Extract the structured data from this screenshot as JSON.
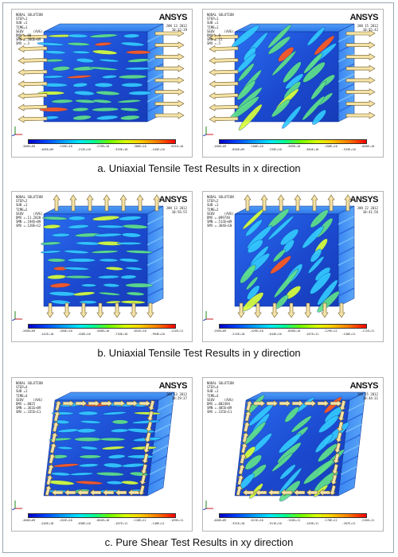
{
  "panels": [
    {
      "id": "a-left",
      "header": [
        "NODAL SOLUTION",
        "STEP=1",
        "SUB =1",
        "TIME=1",
        "SEQV     (AVG)",
        "DMX =.00",
        "SMN =.386E+09",
        "SMX =.3"
      ],
      "logo": "ANSYS",
      "date": [
        "JAN 13 2012",
        "10:22:39"
      ],
      "ticks_top": [
        ".386E+09",
        ".155E+10",
        ".270E+10",
        ".386E+10",
        ".501E+10"
      ],
      "ticks_bottom": [
        ".405E+09",
        ".212E+10",
        ".329E+10",
        ".445E+10"
      ]
    },
    {
      "id": "a-right",
      "header": [
        "NODAL SOLUTION",
        "STEP=1",
        "SUB =1",
        "TIME=1",
        "SEQV     (AVG)",
        "DMX =.0",
        "SMN =.15",
        "SMX =.5"
      ],
      "logo": "ANSYS",
      "date": [
        "JAN 15 2012",
        "10:55:42"
      ],
      "ticks_top": [
        ".100E+09",
        ".160E+10",
        ".309E+10",
        ".458E+10",
        ".608E+10"
      ],
      "ticks_bottom": [
        ".850E+09",
        ".235E+10",
        ".384E+10",
        ".533E+10"
      ]
    },
    {
      "id": "b-left",
      "header": [
        "NODAL SOLUTION",
        "STEP=2",
        "SUB =1",
        "TIME=2",
        "SEQV     (AVG)",
        "DMX =.11.2020",
        "SMN =.194E+09",
        "SMX =.128E+12"
      ],
      "logo": "ANSYS",
      "date": [
        "JAN 13 2012",
        "10:56:55"
      ],
      "ticks_top": [
        ".200E+09",
        ".284E+10",
        ".568E+10",
        ".852E+10",
        ".114E+11"
      ],
      "ticks_bottom": [
        ".142E+10",
        ".426E+10",
        ".710E+10",
        ".994E+10"
      ]
    },
    {
      "id": "b-right",
      "header": [
        "NODAL SOLUTION",
        "STEP=2",
        "SUB =1",
        "TIME=2",
        "SEQV     (AVG)",
        "DMX =.099748",
        "SMN =.513E+09",
        "SMX =.364E+10"
      ],
      "logo": "ANSYS",
      "date": [
        "JAN 22 2012",
        "10:41:56"
      ],
      "ticks_top": [
        ".150E+09",
        ".429E+10",
        ".858E+10",
        ".129E+11",
        ".172E+11"
      ],
      "ticks_bottom": [
        ".215E+10",
        ".644E+10",
        ".107E+11",
        ".150E+11"
      ]
    },
    {
      "id": "c-left",
      "header": [
        "NODAL SOLUTION",
        "STEP=4",
        "SUB =1",
        "TIME=4",
        "SEQV     (AVG)",
        "DMX =.0025",
        "SMN =.361E+09",
        "SMX =.335E+11"
      ],
      "logo": "ANSYS",
      "date": [
        "JAN 13 2012",
        "10:29:37"
      ],
      "ticks_top": [
        ".400E+09",
        ".452E+10",
        ".864E+10",
        ".128E+11",
        ".169E+11"
      ],
      "ticks_bottom": [
        ".246E+10",
        ".658E+10",
        ".107E+11",
        ".148E+11"
      ]
    },
    {
      "id": "c-right",
      "header": [
        "NODAL SOLUTION",
        "STEP=4",
        "SUB =1",
        "TIME=4",
        "SEQV     (AVG)",
        "DMX =.002494",
        "SMN =.405E+09",
        "SMX =.315E+11"
      ],
      "logo": "ANSYS",
      "date": [
        "JAN 15 2012",
        "10:44:31"
      ],
      "ticks_top": [
        ".400E+09",
        ".621E+10",
        ".120E+11",
        ".178E+11",
        ".236E+11"
      ],
      "ticks_bottom": [
        ".331E+10",
        ".911E+10",
        ".149E+11",
        ".207E+11"
      ]
    }
  ],
  "captions": [
    "a. Uniaxial Tensile Test Results in x direction",
    "b. Uniaxial Tensile Test Results in y direction",
    "c. Pure Shear Test Results in xy direction"
  ],
  "colors": {
    "arrow_fill": "#f5e3a6",
    "arrow_stroke": "#6f5a2a",
    "matrix_blue": "#1f52d6",
    "fiber_green": "#5fe08a",
    "fiber_cyan": "#33c9ff"
  }
}
